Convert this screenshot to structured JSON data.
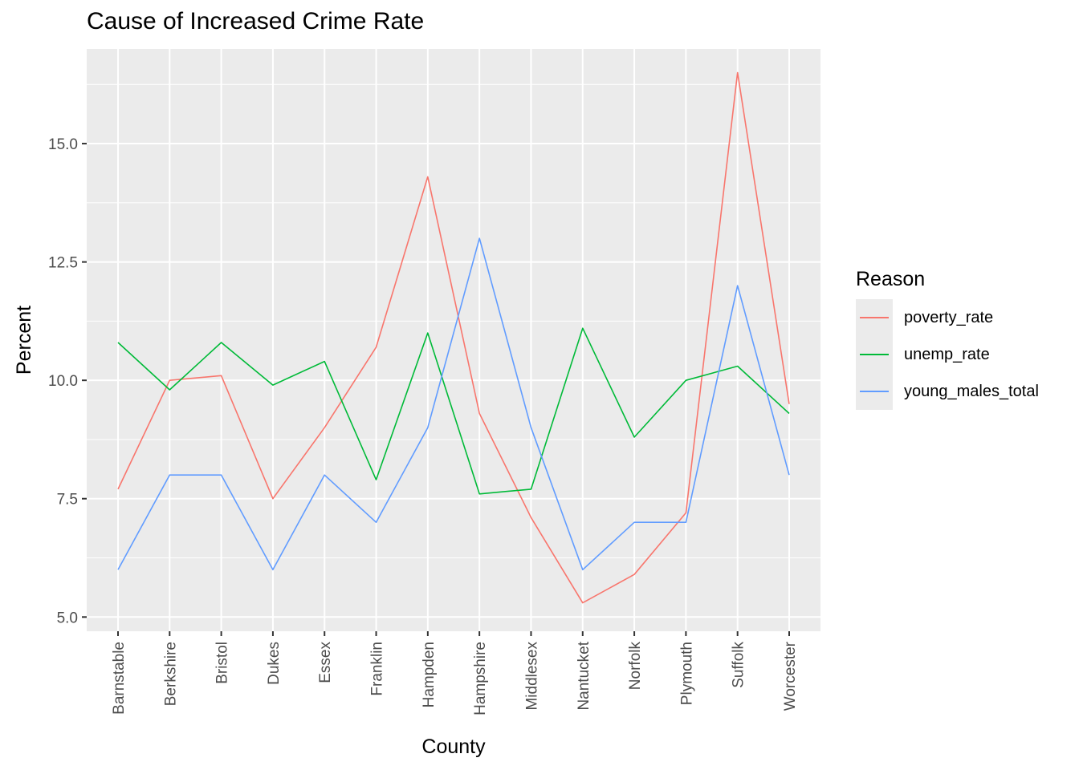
{
  "chart_data": {
    "type": "line",
    "title": "Cause of Increased Crime Rate",
    "xlabel": "County",
    "ylabel": "Percent",
    "categories": [
      "Barnstable",
      "Berkshire",
      "Bristol",
      "Dukes",
      "Essex",
      "Franklin",
      "Hampden",
      "Hampshire",
      "Middlesex",
      "Nantucket",
      "Norfolk",
      "Plymouth",
      "Suffolk",
      "Worcester"
    ],
    "ylim": [
      4.7,
      17.0
    ],
    "yticks": [
      5.0,
      7.5,
      10.0,
      12.5,
      15.0
    ],
    "ytick_labels": [
      "5.0",
      "7.5",
      "10.0",
      "12.5",
      "15.0"
    ],
    "grid": true,
    "legend": {
      "title": "Reason",
      "placement": "right"
    },
    "series": [
      {
        "name": "poverty_rate",
        "color": "#F8766D",
        "values": [
          7.7,
          10.0,
          10.1,
          7.5,
          9.0,
          10.7,
          14.3,
          9.3,
          7.1,
          5.3,
          5.9,
          7.2,
          16.5,
          9.5
        ]
      },
      {
        "name": "unemp_rate",
        "color": "#00BA38",
        "values": [
          10.8,
          9.8,
          10.8,
          9.9,
          10.4,
          7.9,
          11.0,
          7.6,
          7.7,
          11.1,
          8.8,
          10.0,
          10.3,
          9.3
        ]
      },
      {
        "name": "young_males_total",
        "color": "#619CFF",
        "values": [
          6.0,
          8.0,
          8.0,
          6.0,
          8.0,
          7.0,
          9.0,
          13.0,
          9.0,
          6.0,
          7.0,
          7.0,
          12.0,
          8.0
        ]
      }
    ],
    "colors": {
      "panel": "#ebebeb",
      "grid": "#ffffff",
      "text": "#4d4d4d"
    }
  }
}
